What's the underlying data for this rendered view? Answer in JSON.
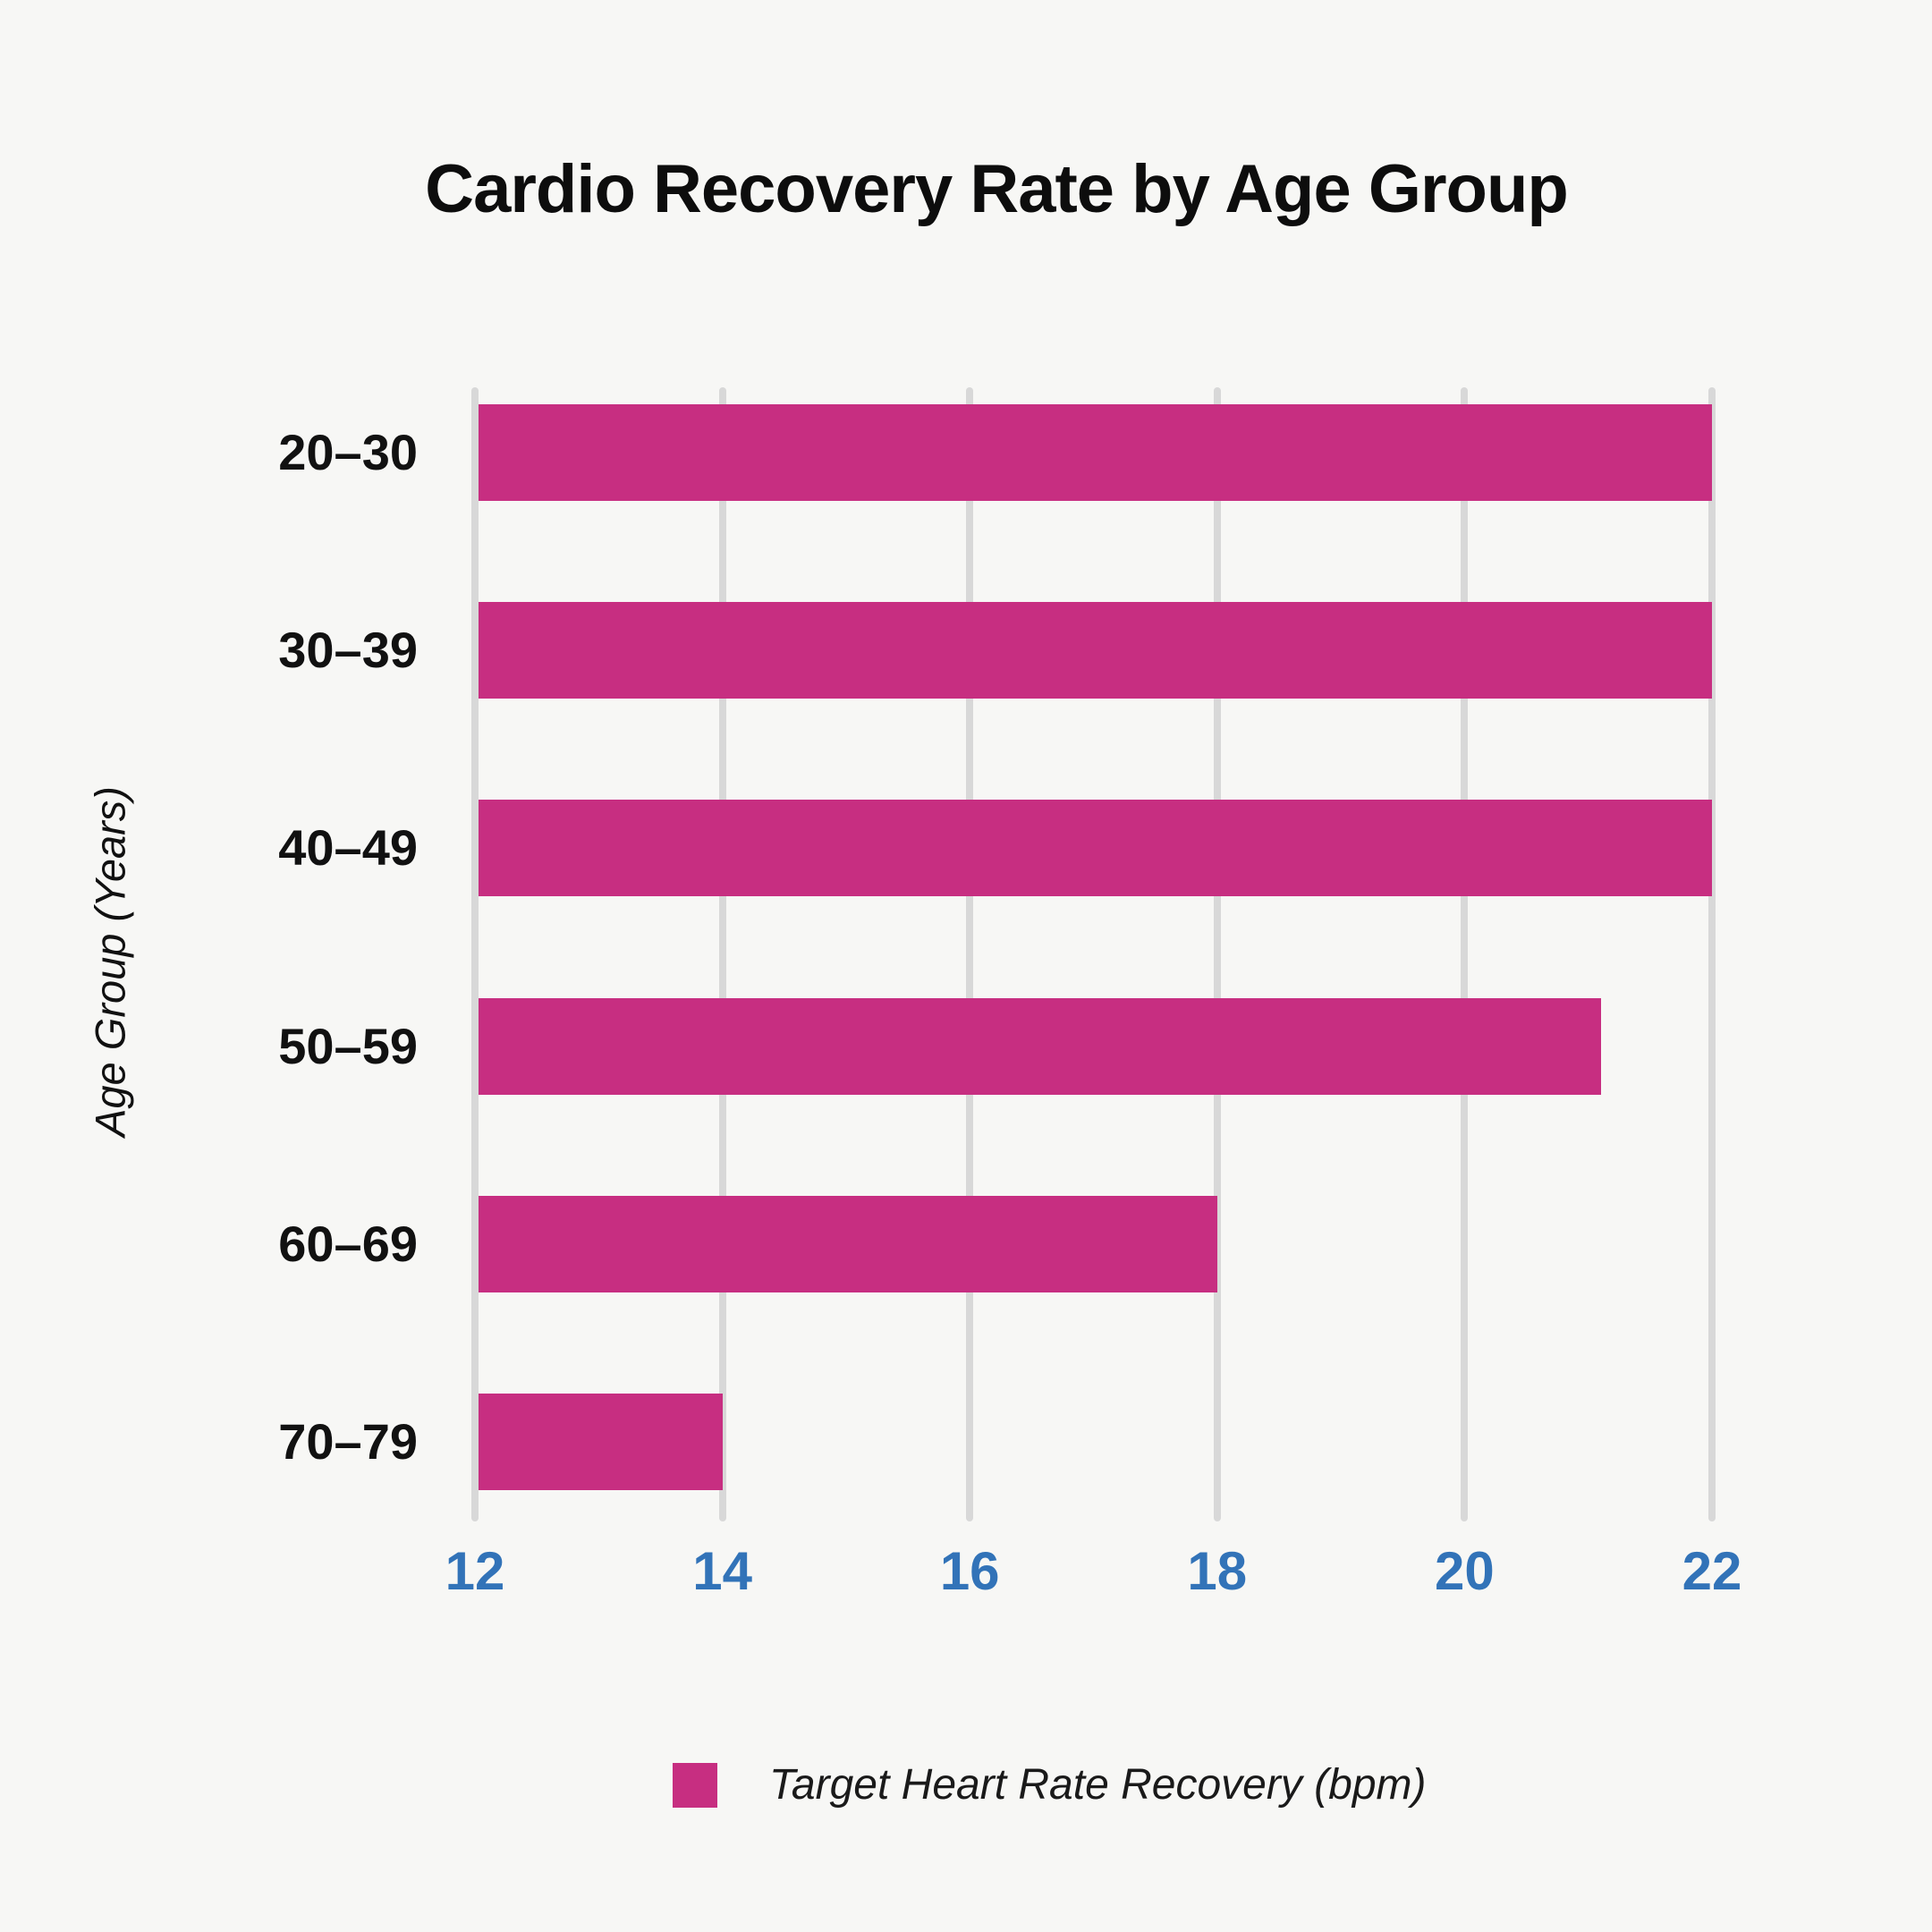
{
  "title": "Cardio Recovery Rate by Age Group",
  "chart_data": {
    "type": "bar",
    "orientation": "horizontal",
    "title": "Cardio Recovery Rate by Age Group",
    "categories": [
      "20–30",
      "30–39",
      "40–49",
      "50–59",
      "60–69",
      "70–79"
    ],
    "series": [
      {
        "name": "Target Heart Rate Recovery (bpm)",
        "values": [
          22,
          22,
          22,
          21.1,
          18,
          14
        ]
      }
    ],
    "xlabel": "",
    "ylabel": "Age Group (Years)",
    "xlim": [
      12,
      22
    ],
    "xticks": [
      12,
      14,
      16,
      18,
      20,
      22
    ],
    "grid": "vertical-only",
    "legend_position": "bottom",
    "colors": {
      "bar": "#c72e81",
      "gridline": "#d8d8d8",
      "tick_labels": "#3273b8",
      "text": "#111111",
      "background": "#f7f7f5"
    }
  },
  "legend": {
    "label": "Target Heart Rate Recovery (bpm)",
    "swatch_color": "#c72e81"
  }
}
